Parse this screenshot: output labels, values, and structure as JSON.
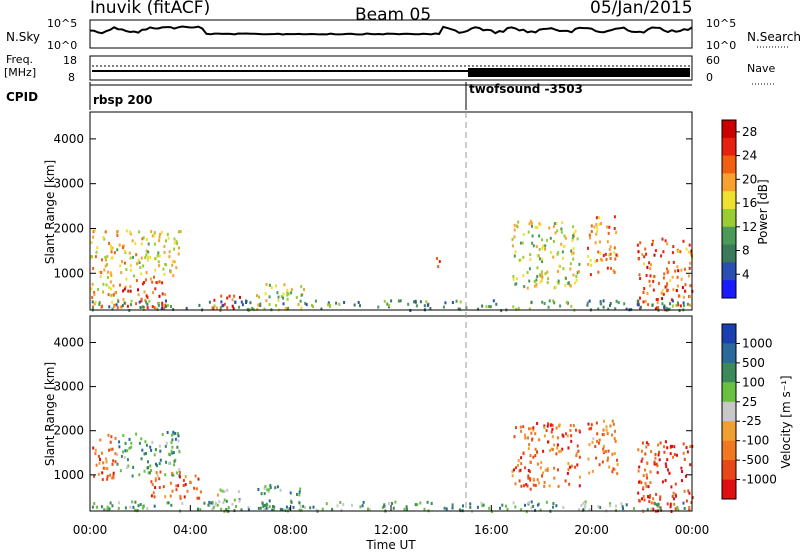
{
  "header": {
    "station": "Inuvik (fitACF)",
    "beam": "Beam 05",
    "date": "05/Jan/2015"
  },
  "top_panel": {
    "left_label": "N.Sky",
    "left_ticks": [
      "10^5",
      "10^0"
    ],
    "right_label": "N.Search",
    "right_ticks": [
      "10^5",
      "10^0"
    ]
  },
  "freq_panel": {
    "label_line1": "Freq.",
    "label_line2": "[MHz]",
    "left_ticks": [
      "18",
      "8"
    ],
    "right_label": "Nave",
    "right_ticks": [
      "60",
      "0"
    ]
  },
  "cpid_panel": {
    "label": "CPID",
    "mode1": "rbsp 200",
    "mode2": "twofsound -3503",
    "switch_hour": 15.0
  },
  "x_axis": {
    "label": "Time UT",
    "ticks": [
      "00:00",
      "04:00",
      "08:00",
      "12:00",
      "16:00",
      "20:00",
      "00:00"
    ]
  },
  "colors": {
    "power": [
      "#1a1aff",
      "#2a4fb0",
      "#3a7a5a",
      "#4a9a5a",
      "#9acd32",
      "#f0e030",
      "#f8a030",
      "#f06010",
      "#e82010",
      "#cc0000"
    ],
    "velocity": [
      "#1a3fb0",
      "#2a6a9a",
      "#3a8a5a",
      "#6ac040",
      "#c8c8c8",
      "#f0a030",
      "#f07820",
      "#e84818",
      "#e01010"
    ]
  },
  "chart_data": [
    {
      "type": "heatmap",
      "title": "Power",
      "ylabel": "Slant Range [km]",
      "xlabel": "",
      "x_range_hours": [
        0,
        24
      ],
      "ylim": [
        180,
        4600
      ],
      "yticks": [
        "1000",
        "2000",
        "3000",
        "4000"
      ],
      "colorbar": {
        "label": "Power [dB]",
        "ticks": [
          "4",
          "8",
          "12",
          "16",
          "20",
          "24",
          "28"
        ],
        "range": [
          0,
          30
        ]
      },
      "regions": [
        {
          "t0": 0.0,
          "t1": 1.0,
          "r0": 200,
          "r1": 2000,
          "level": 0.6
        },
        {
          "t0": 1.0,
          "t1": 3.6,
          "r0": 900,
          "r1": 2000,
          "level": 0.55
        },
        {
          "t0": 0.9,
          "t1": 3.2,
          "r0": 250,
          "r1": 900,
          "level": 0.8
        },
        {
          "t0": 4.6,
          "t1": 6.0,
          "r0": 200,
          "r1": 550,
          "level": 0.85
        },
        {
          "t0": 6.6,
          "t1": 8.5,
          "r0": 200,
          "r1": 800,
          "level": 0.5
        },
        {
          "t0": 13.7,
          "t1": 13.95,
          "r0": 1050,
          "r1": 1450,
          "level": 0.7
        },
        {
          "t0": 16.8,
          "t1": 19.5,
          "r0": 700,
          "r1": 2200,
          "level": 0.5
        },
        {
          "t0": 19.8,
          "t1": 21.0,
          "r0": 1000,
          "r1": 2300,
          "level": 0.7
        },
        {
          "t0": 21.8,
          "t1": 24.0,
          "r0": 200,
          "r1": 1800,
          "level": 0.75
        },
        {
          "t0": 0.0,
          "t1": 24.0,
          "r0": 200,
          "r1": 420,
          "level": 0.3
        }
      ]
    },
    {
      "type": "heatmap",
      "title": "Velocity",
      "ylabel": "Slant Range [km]",
      "xlabel": "Time UT",
      "x_range_hours": [
        0,
        24
      ],
      "ylim": [
        180,
        4600
      ],
      "yticks": [
        "1000",
        "2000",
        "3000",
        "4000"
      ],
      "colorbar": {
        "label": "Velocity [m s⁻¹]",
        "ticks": [
          "1000",
          "500",
          "100",
          "25",
          "-25",
          "-100",
          "-500",
          "-1000"
        ],
        "range": [
          -1000,
          1000
        ]
      },
      "regions": [
        {
          "t0": 0.0,
          "t1": 1.0,
          "r0": 900,
          "r1": 2000,
          "level": 0.75
        },
        {
          "t0": 1.0,
          "t1": 3.6,
          "r0": 1000,
          "r1": 2000,
          "level": 0.3
        },
        {
          "t0": 2.4,
          "t1": 4.4,
          "r0": 500,
          "r1": 1100,
          "level": 0.8
        },
        {
          "t0": 4.6,
          "t1": 6.0,
          "r0": 200,
          "r1": 700,
          "level": 0.45
        },
        {
          "t0": 6.6,
          "t1": 8.5,
          "r0": 200,
          "r1": 800,
          "level": 0.3
        },
        {
          "t0": 16.8,
          "t1": 19.5,
          "r0": 700,
          "r1": 2200,
          "level": 0.78
        },
        {
          "t0": 19.8,
          "t1": 21.0,
          "r0": 1000,
          "r1": 2300,
          "level": 0.72
        },
        {
          "t0": 21.8,
          "t1": 24.0,
          "r0": 200,
          "r1": 1800,
          "level": 0.85
        },
        {
          "t0": 0.0,
          "t1": 24.0,
          "r0": 200,
          "r1": 420,
          "level": 0.35
        }
      ]
    }
  ]
}
